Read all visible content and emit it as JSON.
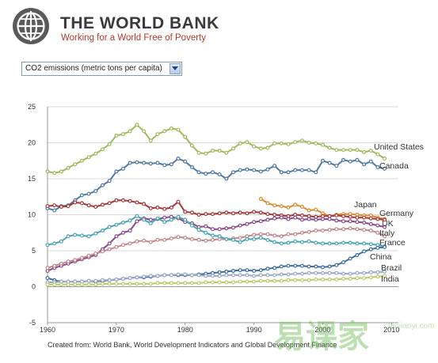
{
  "header": {
    "title": "THE WORLD BANK",
    "tagline": "Working for a World Free of Poverty",
    "logo_icon": "globe-logo-icon"
  },
  "indicator": {
    "selected": "CO2 emissions (metric tons per capita)"
  },
  "source_note": "Created from: World Bank, World Development Indicators and Global Development Finance",
  "watermark": {
    "text_cn": "易课家",
    "text_en": "tanjiaoyi.com"
  },
  "chart_data": {
    "type": "line",
    "xlim": [
      1960,
      2011
    ],
    "ylim": [
      -5,
      25
    ],
    "x_ticks": [
      "1960",
      "1970",
      "1980",
      "1990",
      "2000",
      "2010"
    ],
    "y_ticks": [
      "-5",
      "0",
      "5",
      "10",
      "15",
      "20",
      "25"
    ],
    "grid": true,
    "series": [
      {
        "name": "United States",
        "color": "#9fba5a",
        "x": [
          1960,
          1961,
          1962,
          1963,
          1964,
          1965,
          1966,
          1967,
          1968,
          1969,
          1970,
          1971,
          1972,
          1973,
          1974,
          1975,
          1976,
          1977,
          1978,
          1979,
          1980,
          1981,
          1982,
          1983,
          1984,
          1985,
          1986,
          1987,
          1988,
          1989,
          1990,
          1991,
          1992,
          1993,
          1994,
          1995,
          1996,
          1997,
          1998,
          1999,
          2000,
          2001,
          2002,
          2003,
          2004,
          2005,
          2006,
          2007,
          2008,
          2009
        ],
        "y": [
          16.0,
          15.8,
          16.0,
          16.5,
          17.0,
          17.5,
          18.0,
          18.5,
          19.1,
          19.8,
          21.0,
          21.2,
          21.6,
          22.5,
          21.6,
          20.3,
          21.2,
          21.6,
          22.0,
          21.8,
          20.8,
          19.6,
          18.6,
          18.5,
          18.9,
          18.9,
          18.6,
          19.2,
          19.9,
          20.1,
          19.5,
          19.2,
          19.3,
          19.9,
          19.9,
          19.8,
          20.1,
          20.3,
          20.0,
          19.9,
          19.7,
          19.3,
          19.0,
          19.0,
          19.0,
          19.0,
          18.7,
          18.9,
          18.4,
          17.8
        ]
      },
      {
        "name": "Canada",
        "color": "#4f7aa3",
        "x": [
          1960,
          1961,
          1962,
          1963,
          1964,
          1965,
          1966,
          1967,
          1968,
          1969,
          1970,
          1971,
          1972,
          1973,
          1974,
          1975,
          1976,
          1977,
          1978,
          1979,
          1980,
          1981,
          1982,
          1983,
          1984,
          1985,
          1986,
          1987,
          1988,
          1989,
          1990,
          1991,
          1992,
          1993,
          1994,
          1995,
          1996,
          1997,
          1998,
          1999,
          2000,
          2001,
          2002,
          2003,
          2004,
          2005,
          2006,
          2007,
          2008,
          2009
        ],
        "y": [
          10.9,
          10.6,
          11.2,
          11.3,
          12.0,
          12.7,
          12.9,
          13.3,
          14.1,
          14.7,
          16.0,
          16.4,
          17.2,
          17.3,
          17.2,
          17.1,
          17.2,
          16.9,
          17.0,
          17.8,
          17.4,
          16.6,
          15.9,
          15.7,
          15.9,
          15.6,
          15.0,
          15.9,
          16.2,
          16.3,
          16.2,
          16.0,
          16.3,
          16.8,
          15.9,
          15.9,
          16.2,
          16.2,
          16.2,
          15.9,
          17.5,
          17.2,
          16.8,
          17.6,
          17.4,
          17.6,
          17.0,
          17.4,
          16.6,
          16.4
        ]
      },
      {
        "name": "Japan",
        "color": "#dc8a2c",
        "x": [
          1991,
          1992,
          1993,
          1994,
          1995,
          1996,
          1997,
          1998,
          1999,
          2000,
          2001,
          2002,
          2003,
          2004,
          2005,
          2006,
          2007,
          2008,
          2009
        ],
        "y": [
          12.2,
          11.6,
          11.3,
          11.2,
          11.0,
          11.4,
          11.1,
          10.6,
          10.7,
          10.2,
          9.8,
          10.0,
          10.1,
          10.1,
          10.0,
          9.9,
          9.9,
          9.6,
          9.4
        ]
      },
      {
        "name": "Germany",
        "color": "#a33838",
        "x": [
          1960,
          1961,
          1962,
          1963,
          1964,
          1965,
          1966,
          1967,
          1968,
          1969,
          1970,
          1971,
          1972,
          1973,
          1974,
          1975,
          1976,
          1977,
          1978,
          1979,
          1980,
          1981,
          1982,
          1983,
          1984,
          1985,
          1986,
          1987,
          1988,
          1989,
          1990,
          1991,
          1992,
          1993,
          1994,
          1995,
          1996,
          1997,
          1998,
          1999,
          2000,
          2001,
          2002,
          2003,
          2004,
          2005,
          2006,
          2007,
          2008,
          2009
        ],
        "y": [
          11.2,
          11.3,
          11.1,
          11.2,
          11.7,
          11.6,
          11.3,
          11.1,
          11.4,
          11.6,
          12.0,
          12.0,
          11.9,
          11.7,
          11.5,
          10.9,
          11.0,
          10.8,
          11.0,
          11.8,
          10.4,
          10.3,
          10.0,
          10.1,
          10.1,
          10.2,
          10.3,
          10.2,
          10.3,
          10.2,
          10.4,
          10.3,
          10.1,
          10.0,
          9.9,
          9.8,
          10.0,
          9.9,
          9.8,
          9.7,
          9.8,
          9.8,
          9.9,
          9.8,
          9.7,
          9.6,
          9.6,
          9.5,
          9.4,
          9.3
        ]
      },
      {
        "name": "UK",
        "color": "#8a4a8c",
        "x": [
          1960,
          1961,
          1962,
          1963,
          1964,
          1965,
          1966,
          1967,
          1968,
          1969,
          1970,
          1971,
          1972,
          1973,
          1974,
          1975,
          1976,
          1977,
          1978,
          1979,
          1980,
          1981,
          1982,
          1983,
          1984,
          1985,
          1986,
          1987,
          1988,
          1989,
          1990,
          1991,
          1992,
          1993,
          1994,
          1995,
          1996,
          1997,
          1998,
          1999,
          2000,
          2001,
          2002,
          2003,
          2004,
          2005,
          2006,
          2007,
          2008,
          2009
        ],
        "y": [
          2.2,
          2.6,
          2.9,
          3.2,
          3.5,
          3.8,
          4.1,
          4.4,
          5.2,
          6.0,
          7.0,
          7.5,
          7.8,
          9.1,
          9.5,
          9.3,
          9.4,
          9.6,
          9.7,
          9.5,
          9.0,
          8.8,
          8.3,
          8.4,
          8.0,
          8.0,
          8.1,
          8.2,
          8.5,
          8.7,
          9.0,
          9.1,
          9.3,
          9.5,
          9.6,
          9.4,
          9.6,
          9.3,
          9.4,
          9.3,
          9.4,
          9.4,
          9.2,
          9.1,
          9.1,
          9.0,
          8.9,
          8.7,
          8.5,
          8.3
        ]
      },
      {
        "name": "Italy",
        "color": "#c08a8a",
        "x": [
          1960,
          1961,
          1962,
          1963,
          1964,
          1965,
          1966,
          1967,
          1968,
          1969,
          1970,
          1971,
          1972,
          1973,
          1974,
          1975,
          1976,
          1977,
          1978,
          1979,
          1980,
          1981,
          1982,
          1983,
          1984,
          1985,
          1986,
          1987,
          1988,
          1989,
          1990,
          1991,
          1992,
          1993,
          1994,
          1995,
          1996,
          1997,
          1998,
          1999,
          2000,
          2001,
          2002,
          2003,
          2004,
          2005,
          2006,
          2007,
          2008,
          2009
        ],
        "y": [
          2.6,
          2.9,
          3.2,
          3.5,
          3.7,
          4.0,
          4.3,
          4.6,
          4.9,
          5.2,
          5.5,
          5.8,
          6.0,
          6.3,
          6.4,
          6.2,
          6.5,
          6.5,
          6.7,
          6.9,
          6.8,
          6.6,
          6.5,
          6.4,
          6.5,
          6.6,
          6.6,
          6.7,
          6.8,
          7.0,
          7.2,
          7.3,
          7.3,
          7.1,
          7.0,
          7.3,
          7.3,
          7.5,
          7.6,
          7.8,
          7.8,
          7.9,
          8.0,
          8.0,
          8.1,
          8.0,
          7.9,
          7.8,
          7.5,
          7.0
        ]
      },
      {
        "name": "France",
        "color": "#4aa5b3",
        "x": [
          1960,
          1961,
          1962,
          1963,
          1964,
          1965,
          1966,
          1967,
          1968,
          1969,
          1970,
          1971,
          1972,
          1973,
          1974,
          1975,
          1976,
          1977,
          1978,
          1979,
          1980,
          1981,
          1982,
          1983,
          1984,
          1985,
          1986,
          1987,
          1988,
          1989,
          1990,
          1991,
          1992,
          1993,
          1994,
          1995,
          1996,
          1997,
          1998,
          1999,
          2000,
          2001,
          2002,
          2003,
          2004,
          2005,
          2006,
          2007,
          2008,
          2009
        ],
        "y": [
          5.8,
          6.0,
          6.3,
          7.0,
          7.2,
          7.1,
          7.0,
          7.4,
          7.8,
          8.3,
          8.6,
          8.9,
          9.2,
          9.8,
          9.3,
          8.8,
          9.5,
          9.0,
          9.3,
          9.7,
          9.3,
          8.5,
          7.9,
          7.5,
          7.1,
          7.0,
          6.6,
          6.5,
          6.2,
          6.6,
          6.6,
          6.8,
          6.5,
          6.2,
          6.0,
          6.1,
          6.3,
          6.2,
          6.3,
          6.1,
          6.0,
          6.0,
          6.0,
          6.1,
          6.1,
          6.0,
          6.0,
          5.9,
          5.8,
          5.6
        ]
      },
      {
        "name": "China",
        "color": "#3b6e9c",
        "x": [
          1960,
          1961,
          1962,
          1963,
          1964,
          1965,
          1966,
          1967,
          1968,
          1969,
          1970,
          1971,
          1972,
          1973,
          1974,
          1975,
          1976,
          1977,
          1978,
          1979,
          1980,
          1981,
          1982,
          1983,
          1984,
          1985,
          1986,
          1987,
          1988,
          1989,
          1990,
          1991,
          1992,
          1993,
          1994,
          1995,
          1996,
          1997,
          1998,
          1999,
          2000,
          2001,
          2002,
          2003,
          2004,
          2005,
          2006,
          2007,
          2008,
          2009
        ],
        "y": [
          1.2,
          0.9,
          0.7,
          0.7,
          0.7,
          0.7,
          0.8,
          0.7,
          0.8,
          0.9,
          1.0,
          1.1,
          1.2,
          1.3,
          1.3,
          1.4,
          1.5,
          1.6,
          1.6,
          1.6,
          1.6,
          1.6,
          1.7,
          1.8,
          1.9,
          2.0,
          2.1,
          2.2,
          2.3,
          2.3,
          2.2,
          2.3,
          2.5,
          2.6,
          2.8,
          2.9,
          2.9,
          2.9,
          2.8,
          2.8,
          2.7,
          2.8,
          3.0,
          3.4,
          3.9,
          4.4,
          4.9,
          5.2,
          5.4,
          5.5
        ]
      },
      {
        "name": "Brazil",
        "color": "#9aa8c8",
        "x": [
          1960,
          1961,
          1962,
          1963,
          1964,
          1965,
          1966,
          1967,
          1968,
          1969,
          1970,
          1971,
          1972,
          1973,
          1974,
          1975,
          1976,
          1977,
          1978,
          1979,
          1980,
          1981,
          1982,
          1983,
          1984,
          1985,
          1986,
          1987,
          1988,
          1989,
          1990,
          1991,
          1992,
          1993,
          1994,
          1995,
          1996,
          1997,
          1998,
          1999,
          2000,
          2001,
          2002,
          2003,
          2004,
          2005,
          2006,
          2007,
          2008,
          2009
        ],
        "y": [
          0.6,
          0.6,
          0.7,
          0.7,
          0.7,
          0.7,
          0.8,
          0.8,
          0.9,
          0.9,
          1.0,
          1.1,
          1.2,
          1.3,
          1.4,
          1.5,
          1.5,
          1.6,
          1.6,
          1.7,
          1.7,
          1.6,
          1.6,
          1.5,
          1.5,
          1.5,
          1.6,
          1.6,
          1.6,
          1.6,
          1.5,
          1.6,
          1.6,
          1.6,
          1.7,
          1.7,
          1.8,
          1.8,
          1.9,
          1.9,
          1.9,
          1.9,
          1.9,
          1.8,
          1.8,
          1.9,
          1.9,
          2.0,
          2.0,
          2.1
        ]
      },
      {
        "name": "India",
        "color": "#b9cc6c",
        "x": [
          1960,
          1961,
          1962,
          1963,
          1964,
          1965,
          1966,
          1967,
          1968,
          1969,
          1970,
          1971,
          1972,
          1973,
          1974,
          1975,
          1976,
          1977,
          1978,
          1979,
          1980,
          1981,
          1982,
          1983,
          1984,
          1985,
          1986,
          1987,
          1988,
          1989,
          1990,
          1991,
          1992,
          1993,
          1994,
          1995,
          1996,
          1997,
          1998,
          1999,
          2000,
          2001,
          2002,
          2003,
          2004,
          2005,
          2006,
          2007,
          2008,
          2009
        ],
        "y": [
          0.3,
          0.3,
          0.3,
          0.3,
          0.3,
          0.3,
          0.3,
          0.3,
          0.4,
          0.4,
          0.4,
          0.4,
          0.4,
          0.4,
          0.4,
          0.4,
          0.5,
          0.5,
          0.5,
          0.5,
          0.5,
          0.5,
          0.5,
          0.6,
          0.6,
          0.6,
          0.6,
          0.6,
          0.7,
          0.7,
          0.7,
          0.8,
          0.8,
          0.8,
          0.8,
          0.9,
          0.9,
          0.9,
          0.9,
          1.0,
          1.0,
          1.0,
          1.0,
          1.1,
          1.1,
          1.2,
          1.2,
          1.3,
          1.4,
          1.5
        ]
      }
    ]
  }
}
